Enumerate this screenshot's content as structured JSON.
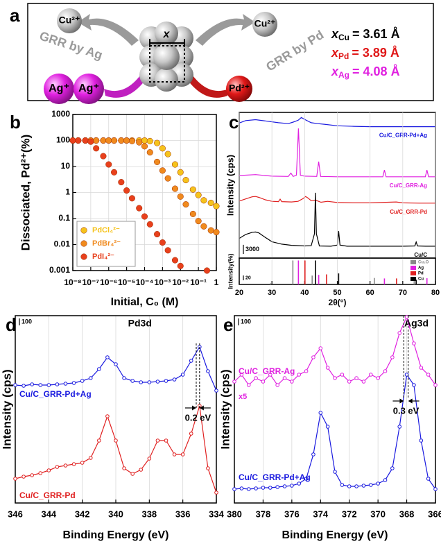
{
  "schematic": {
    "panel_label": "a",
    "cu_left": "Cu²⁺",
    "cu_right": "Cu²⁺",
    "grr_ag": "GRR by Ag",
    "grr_pd": "GRR by Pd",
    "lattice": "x",
    "ag_ions": [
      "Ag⁺",
      "Ag⁺"
    ],
    "pd_ion": "Pd²⁺",
    "parameters": [
      {
        "symbol": "x",
        "subscript": "Cu",
        "text": "= 3.61 Å",
        "color": "#000000"
      },
      {
        "symbol": "x",
        "subscript": "Pd",
        "text": "= 3.89 Å",
        "color": "#e01818"
      },
      {
        "symbol": "x",
        "subscript": "Ag",
        "text": "= 4.08 Å",
        "color": "#e020e0"
      }
    ]
  },
  "chart_data": [
    {
      "type": "scatter",
      "panel_label": "b",
      "xlabel": "Initial, C₀ (M)",
      "ylabel": "Dissociated, Pd²⁺(%)",
      "xscale": "log",
      "yscale": "log",
      "grid": true,
      "legend": "lower left",
      "xlim": [
        1e-08,
        1
      ],
      "ylim": [
        0.001,
        1000
      ],
      "xticks": [
        {
          "value": 1e-08,
          "label": "10⁻⁸"
        },
        {
          "value": 1e-07,
          "label": "10⁻⁷"
        },
        {
          "value": 1e-06,
          "label": "10⁻⁶"
        },
        {
          "value": 1e-05,
          "label": "10⁻⁵"
        },
        {
          "value": 0.0001,
          "label": "10⁻⁴"
        },
        {
          "value": 0.001,
          "label": "10⁻³"
        },
        {
          "value": 0.01,
          "label": "10⁻²"
        },
        {
          "value": 0.1,
          "label": "10⁻¹"
        },
        1
      ],
      "yticks": [
        0.001,
        0.01,
        0.1,
        1,
        10,
        100,
        1000
      ],
      "series": [
        {
          "name": "PdCl₄²⁻",
          "color": "#f6c31c",
          "x": [
            1e-08,
            2e-08,
            5e-08,
            1e-07,
            2e-07,
            5e-07,
            1e-06,
            2e-06,
            5e-06,
            1e-05,
            2e-05,
            5e-05,
            0.0001,
            0.0002,
            0.0005,
            0.001,
            0.002,
            0.005,
            0.01,
            0.02,
            0.05,
            0.1,
            0.2,
            0.5,
            1
          ],
          "values": [
            100,
            100,
            100,
            100,
            100,
            100,
            100,
            100,
            100,
            100,
            100,
            100,
            100,
            95,
            80,
            50,
            30,
            12,
            6,
            3,
            1.3,
            0.8,
            0.5,
            0.4,
            0.3
          ]
        },
        {
          "name": "PdBr₄²⁻",
          "color": "#f08a1e",
          "x": [
            1e-08,
            2e-08,
            5e-08,
            1e-07,
            2e-07,
            5e-07,
            1e-06,
            2e-06,
            5e-06,
            1e-05,
            2e-05,
            5e-05,
            0.0001,
            0.0002,
            0.0005,
            0.001,
            0.002,
            0.005,
            0.01,
            0.02,
            0.05,
            0.1,
            0.2,
            0.5,
            1
          ],
          "values": [
            100,
            100,
            100,
            100,
            100,
            100,
            100,
            100,
            100,
            100,
            95,
            85,
            60,
            35,
            15,
            7,
            3.5,
            1.4,
            0.7,
            0.35,
            0.15,
            0.08,
            0.05,
            0.035,
            0.03
          ]
        },
        {
          "name": "PdI₄²⁻",
          "color": "#e8401c",
          "x": [
            1e-08,
            2e-08,
            5e-08,
            1e-07,
            2e-07,
            5e-07,
            1e-06,
            2e-06,
            5e-06,
            1e-05,
            2e-05,
            5e-05,
            0.0001,
            0.0002,
            0.0005,
            0.001,
            0.002,
            0.005,
            0.01,
            0.3
          ],
          "values": [
            100,
            100,
            100,
            90,
            50,
            25,
            12,
            6,
            2.5,
            1.2,
            0.6,
            0.25,
            0.12,
            0.06,
            0.025,
            0.012,
            0.006,
            0.0025,
            0.0015,
            0.001
          ]
        }
      ]
    },
    {
      "type": "line",
      "panel_label": "c",
      "ylabel": "Intensity (cps)",
      "xlim": [
        20,
        80
      ],
      "ylim": [
        0,
        48000
      ],
      "scale_bar": 3000,
      "grid": true,
      "series": [
        {
          "name": "Cu/C_GRR-Pd+Ag",
          "color": "#1a1adf",
          "x": [
            20,
            22,
            25,
            28,
            32,
            35,
            36.5,
            38,
            39,
            40,
            42,
            44,
            46,
            50,
            55,
            60,
            65,
            70,
            75,
            80
          ],
          "values": [
            44500,
            45300,
            45600,
            45200,
            44600,
            44300,
            44800,
            45400,
            46300,
            45700,
            44600,
            44300,
            44100,
            43600,
            43400,
            43300,
            43300,
            43300,
            43300,
            43300
          ]
        },
        {
          "name": "Cu/C_GRR-Ag",
          "color": "#e020e0",
          "x": [
            20,
            25,
            30,
            35,
            35.8,
            36.5,
            37.5,
            38.1,
            38.7,
            40,
            43.7,
            44.3,
            44.9,
            50,
            55,
            60,
            63.9,
            64.4,
            64.9,
            70,
            76.9,
            77.4,
            77.9,
            80
          ],
          "values": [
            27200,
            27500,
            27000,
            26900,
            28000,
            26900,
            27300,
            42700,
            27300,
            27000,
            26900,
            31800,
            26900,
            26800,
            26800,
            26800,
            26800,
            29000,
            26800,
            26800,
            26800,
            29000,
            26800,
            26800
          ]
        },
        {
          "name": "Cu/C_GRR-Pd",
          "color": "#e02020",
          "x": [
            20,
            22,
            24,
            25,
            26,
            28,
            30,
            32,
            32.5,
            33,
            36,
            38,
            39.5,
            40.3,
            41,
            42,
            43.3,
            45,
            47,
            50,
            55,
            60,
            68,
            70,
            75,
            80
          ],
          "values": [
            18800,
            19500,
            20200,
            20300,
            20000,
            19200,
            18700,
            18600,
            19400,
            18600,
            18500,
            18700,
            19600,
            20300,
            19800,
            18900,
            19100,
            18400,
            18700,
            18300,
            18200,
            18200,
            18500,
            18200,
            18100,
            18100
          ]
        },
        {
          "name": "Cu/C",
          "color": "#000000",
          "x": [
            20,
            22,
            24,
            25,
            26,
            28,
            30,
            33,
            36,
            40,
            42,
            43,
            43.3,
            43.6,
            44.5,
            48,
            50,
            50.4,
            50.8,
            53,
            60,
            70,
            73.7,
            74.1,
            74.5,
            77,
            80
          ],
          "values": [
            6500,
            7800,
            8500,
            8600,
            8300,
            6800,
            5400,
            4600,
            4200,
            4000,
            4100,
            8000,
            21500,
            8000,
            4000,
            3900,
            4300,
            8900,
            4300,
            3900,
            3900,
            3900,
            4000,
            5300,
            4000,
            3900,
            3900
          ]
        }
      ]
    },
    {
      "type": "stick",
      "ylabel": "Intensity(%)",
      "xlabel": "2θ(°)",
      "xlim": [
        20,
        80
      ],
      "ylim": [
        0,
        110
      ],
      "xticks": [
        20,
        30,
        40,
        50,
        60,
        70,
        80
      ],
      "scale_bar": 20,
      "legend": "upper right",
      "grid": true,
      "series": [
        {
          "name": "Cu₂O",
          "color": "#888888",
          "x": [
            29.6,
            36.4,
            42.3,
            61.3,
            73.5,
            77.3
          ],
          "values": [
            5,
            100,
            37,
            27,
            17,
            4
          ]
        },
        {
          "name": "Ag",
          "color": "#e020e0",
          "x": [
            38.1,
            44.3,
            64.4,
            77.4
          ],
          "values": [
            100,
            40,
            25,
            26
          ]
        },
        {
          "name": "Pd",
          "color": "#e02020",
          "x": [
            40.1,
            46.7,
            68.1
          ],
          "values": [
            100,
            42,
            25
          ]
        },
        {
          "name": "Cu",
          "color": "#000000",
          "x": [
            43.3,
            50.4,
            74.1
          ],
          "values": [
            100,
            46,
            20
          ]
        }
      ]
    },
    {
      "type": "line",
      "panel_label": "d",
      "title": "Pd3d",
      "xlabel": "Binding Energy (eV)",
      "ylabel": "Intensity (cps)",
      "xlim": [
        346,
        334
      ],
      "ylim": [
        0,
        2700
      ],
      "xticks": [
        346,
        344,
        342,
        340,
        338,
        336,
        334
      ],
      "scale_bar": 100,
      "grid": true,
      "markers": true,
      "shift": {
        "from": 335.2,
        "to": 335.0,
        "label": "0.2 eV"
      },
      "series": [
        {
          "name": "Cu/C_GRR-Pd+Ag",
          "color": "#1a1adf",
          "x": [
            346,
            345.5,
            345,
            344.5,
            344,
            343.5,
            343,
            342.5,
            342,
            341.5,
            341,
            340.5,
            340,
            339.5,
            339,
            338.5,
            338,
            337.5,
            337,
            336.5,
            336,
            335.5,
            335,
            334.5,
            334
          ],
          "values": [
            1700,
            1690,
            1710,
            1700,
            1700,
            1710,
            1720,
            1730,
            1760,
            1800,
            1930,
            2100,
            2000,
            1800,
            1760,
            1740,
            1740,
            1750,
            1760,
            1780,
            1850,
            2050,
            2250,
            1900,
            1620
          ]
        },
        {
          "name": "Cu/C_GRR-Pd",
          "color": "#e02020",
          "x": [
            346,
            345.5,
            345,
            344.5,
            344,
            343.5,
            343,
            342.5,
            342,
            341.5,
            341,
            340.5,
            340,
            339.5,
            339,
            338.5,
            338,
            337.5,
            337,
            336.5,
            336,
            335.5,
            335,
            334.5,
            334
          ],
          "values": [
            350,
            380,
            400,
            430,
            470,
            520,
            540,
            560,
            580,
            650,
            900,
            1250,
            900,
            500,
            420,
            480,
            640,
            900,
            900,
            700,
            700,
            1000,
            1400,
            500,
            150
          ]
        }
      ]
    },
    {
      "type": "line",
      "panel_label": "e",
      "title": "Ag3d",
      "xlabel": "Binding Energy (eV)",
      "ylabel": "Intensity (cps)",
      "xlim": [
        380,
        366
      ],
      "ylim": [
        0,
        2700
      ],
      "xticks": [
        380,
        378,
        376,
        374,
        372,
        370,
        368,
        366
      ],
      "scale_bar": 100,
      "grid": true,
      "markers": true,
      "shift": {
        "from": 368.2,
        "to": 367.9,
        "label": "0.3 eV"
      },
      "annotations": [
        "x5"
      ],
      "series": [
        {
          "name": "Cu/C_GRR-Ag",
          "color": "#e020e0",
          "x": [
            380,
            379.5,
            379,
            378.5,
            378,
            377.5,
            377,
            376.5,
            376,
            375.5,
            375,
            374.5,
            374,
            373.5,
            373,
            372.5,
            372,
            371.5,
            371,
            370.5,
            370,
            369.5,
            369,
            368.5,
            368,
            367.5,
            367,
            366.5,
            366
          ],
          "values": [
            1750,
            1850,
            1700,
            1800,
            1750,
            1850,
            1700,
            1800,
            1750,
            1850,
            1900,
            2100,
            2230,
            1950,
            1800,
            1850,
            1750,
            1800,
            1750,
            1850,
            1800,
            1900,
            2100,
            2450,
            2680,
            2300,
            1950,
            1850,
            1700
          ]
        },
        {
          "name": "Cu/C_GRR-Pd+Ag",
          "color": "#1a1adf",
          "x": [
            380,
            379.5,
            379,
            378.5,
            378,
            377.5,
            377,
            376.5,
            376,
            375.5,
            375,
            374.5,
            374,
            373.5,
            373,
            372.5,
            372,
            371.5,
            371,
            370.5,
            370,
            369.5,
            369,
            368.5,
            368,
            367.5,
            367,
            366.5,
            366
          ],
          "values": [
            200,
            210,
            200,
            210,
            220,
            220,
            230,
            240,
            250,
            280,
            350,
            700,
            1300,
            1100,
            450,
            260,
            240,
            240,
            250,
            260,
            280,
            330,
            500,
            1100,
            1850,
            1700,
            900,
            350,
            200
          ]
        }
      ]
    }
  ]
}
